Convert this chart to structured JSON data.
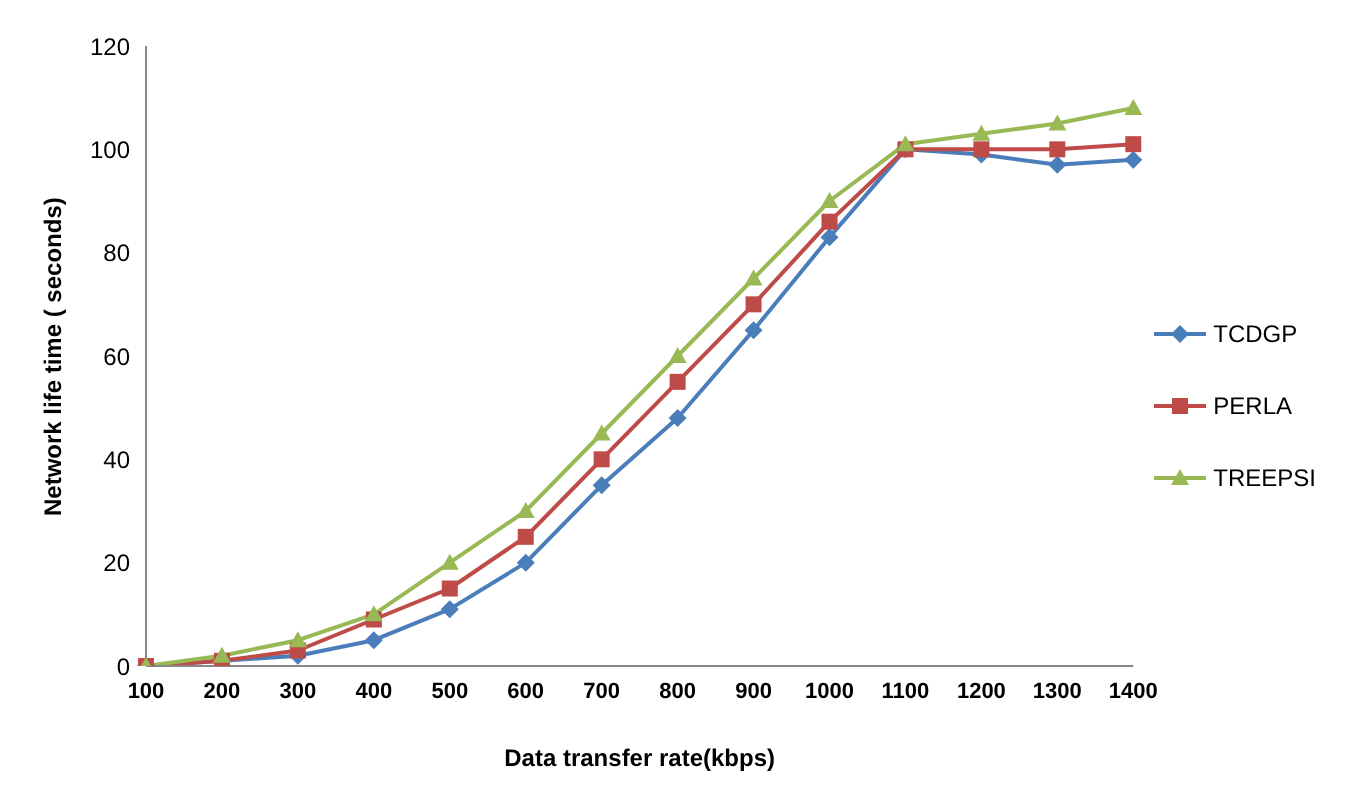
{
  "chart_data": {
    "type": "line",
    "xlabel": "Data transfer rate(kbps)",
    "ylabel": "Network life time ( seconds)",
    "categories": [
      "100",
      "200",
      "300",
      "400",
      "500",
      "600",
      "700",
      "800",
      "900",
      "1000",
      "1100",
      "1200",
      "1300",
      "1400"
    ],
    "series": [
      {
        "name": "TCDGP",
        "color": "#4a7ebb",
        "marker": "diamond",
        "values": [
          0,
          1,
          2,
          5,
          11,
          20,
          35,
          48,
          65,
          83,
          100,
          99,
          97,
          98
        ]
      },
      {
        "name": "PERLA",
        "color": "#be4b48",
        "marker": "square",
        "values": [
          0,
          1,
          3,
          9,
          15,
          25,
          40,
          55,
          70,
          86,
          100,
          100,
          100,
          101
        ]
      },
      {
        "name": "TREEPSI",
        "color": "#98b954",
        "marker": "triangle",
        "values": [
          0,
          2,
          5,
          10,
          20,
          30,
          45,
          60,
          75,
          90,
          101,
          103,
          105,
          108
        ]
      }
    ],
    "ylim": [
      0,
      120
    ],
    "yticks": [
      0,
      20,
      40,
      60,
      80,
      100,
      120
    ],
    "grid": false,
    "legend": "right",
    "line_style": "solid"
  }
}
